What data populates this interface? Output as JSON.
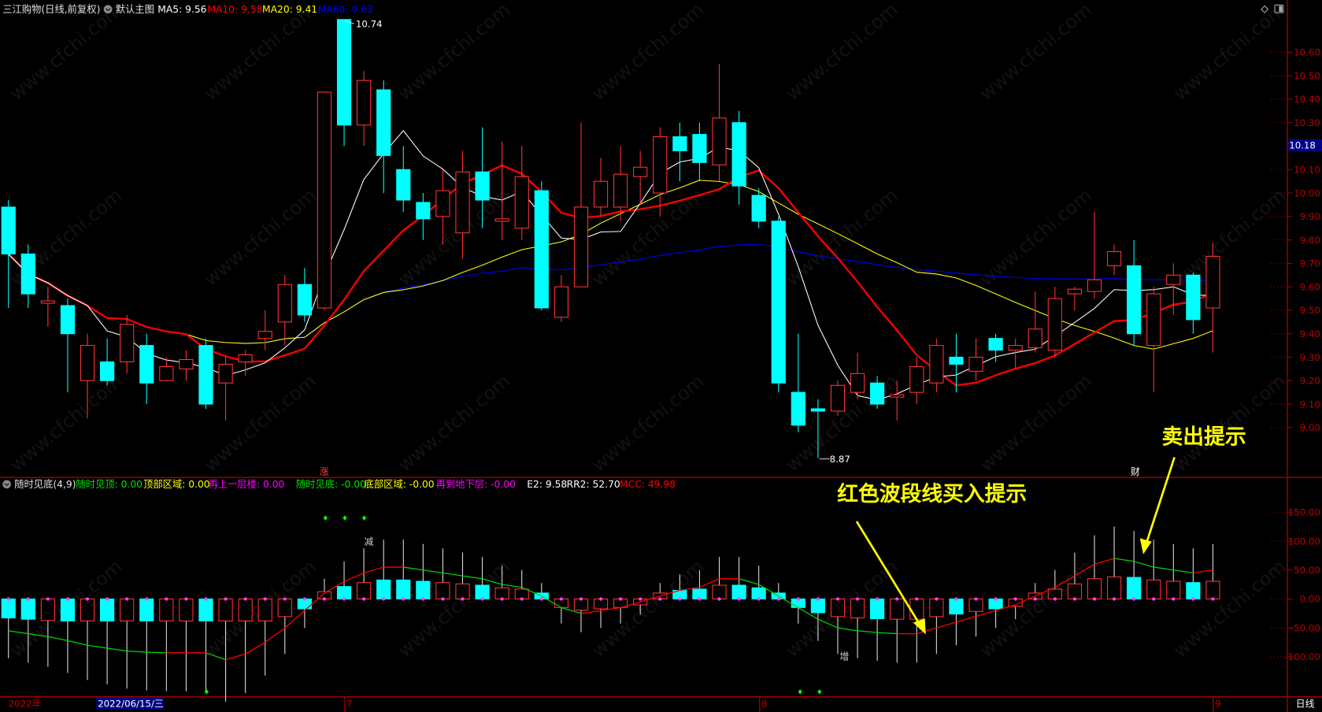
{
  "header": {
    "stock_title": "三江购物(日线,前复权)",
    "template_label": "默认主图",
    "ma5": "MA5: 9.56",
    "ma10": "MA10: 9.58",
    "ma20": "MA20: 9.41",
    "ma60": "MA60: 9.63"
  },
  "indicator_header": {
    "name": "随时见底(4,9)",
    "items": [
      {
        "text": "随时见顶: 0.00",
        "color": "#00e000"
      },
      {
        "text": "顶部区域: 0.00",
        "color": "#ffff00"
      },
      {
        "text": "再上一层楼: 0.00",
        "color": "#ff00ff"
      },
      {
        "text": "随时见底: -0.00",
        "color": "#00e000"
      },
      {
        "text": "底部区域: -0.00",
        "color": "#ffff00"
      },
      {
        "text": "再到地下层: -0.00",
        "color": "#ff00ff"
      },
      {
        "text": "E2: 9.58",
        "color": "#ffffff"
      },
      {
        "text": "RR2: 52.70",
        "color": "#ffffff"
      },
      {
        "text": "MCC: 49.98",
        "color": "#ff0000"
      }
    ]
  },
  "price_axis": {
    "ticks": [
      "10.60",
      "10.50",
      "10.40",
      "10.30",
      "10.10",
      "10.00",
      "9.90",
      "9.80",
      "9.70",
      "9.60",
      "9.50",
      "9.40",
      "9.30",
      "9.20",
      "9.10",
      "9.00"
    ],
    "current_price": "10.18"
  },
  "indicator_axis": {
    "ticks": [
      "150.00",
      "100.00",
      "50.00",
      "0.00",
      "-50.00",
      "-100.00"
    ]
  },
  "time_axis": {
    "year_label": "2022年",
    "cursor_date": "2022/06/15/三",
    "month_labels": [
      "7",
      "8",
      "9"
    ],
    "period_label": "日线"
  },
  "markers": {
    "high_label": "10.74",
    "low_label": "8.87",
    "event_zhang": "涨",
    "event_cai": "财",
    "reduce": "减",
    "increase": "增"
  },
  "annotations": {
    "buy_hint": "红色波段线买入提示",
    "sell_hint": "卖出提示"
  },
  "watermark": "www.cfchi.com",
  "colors": {
    "up": "#ff3232",
    "down": "#00ffff",
    "ma5": "#ffffff",
    "ma10": "#ff0000",
    "ma20": "#ffff00",
    "ma60": "#0000ff",
    "axis": "#c00000",
    "annotation": "#ffff00"
  },
  "candles": [
    [
      9.94,
      9.97,
      9.51,
      9.74
    ],
    [
      9.74,
      9.78,
      9.51,
      9.57
    ],
    [
      9.53,
      9.6,
      9.43,
      9.54
    ],
    [
      9.52,
      9.55,
      9.15,
      9.4
    ],
    [
      9.2,
      9.4,
      9.04,
      9.35
    ],
    [
      9.28,
      9.38,
      9.18,
      9.2
    ],
    [
      9.28,
      9.48,
      9.23,
      9.44
    ],
    [
      9.35,
      9.4,
      9.1,
      9.19
    ],
    [
      9.2,
      9.3,
      9.2,
      9.26
    ],
    [
      9.25,
      9.33,
      9.2,
      9.29
    ],
    [
      9.35,
      9.38,
      9.08,
      9.1
    ],
    [
      9.19,
      9.3,
      9.03,
      9.27
    ],
    [
      9.28,
      9.33,
      9.22,
      9.31
    ],
    [
      9.38,
      9.5,
      9.33,
      9.41
    ],
    [
      9.45,
      9.65,
      9.35,
      9.61
    ],
    [
      9.61,
      9.68,
      9.45,
      9.48
    ],
    [
      9.51,
      10.43,
      9.5,
      10.43
    ],
    [
      10.74,
      10.74,
      10.2,
      10.29
    ],
    [
      10.29,
      10.52,
      10.2,
      10.48
    ],
    [
      10.44,
      10.48,
      10.0,
      10.16
    ],
    [
      10.1,
      10.2,
      9.92,
      9.97
    ],
    [
      9.96,
      10.0,
      9.8,
      9.89
    ],
    [
      9.9,
      10.1,
      9.78,
      10.01
    ],
    [
      9.83,
      10.18,
      9.72,
      10.09
    ],
    [
      10.09,
      10.28,
      9.85,
      9.97
    ],
    [
      9.88,
      10.22,
      9.8,
      9.89
    ],
    [
      9.85,
      10.2,
      9.8,
      10.07
    ],
    [
      10.01,
      10.05,
      9.5,
      9.51
    ],
    [
      9.47,
      9.65,
      9.45,
      9.6
    ],
    [
      9.6,
      10.3,
      9.6,
      9.94
    ],
    [
      9.94,
      10.15,
      9.9,
      10.05
    ],
    [
      9.94,
      10.2,
      9.88,
      10.08
    ],
    [
      10.07,
      10.18,
      9.95,
      10.11
    ],
    [
      10.0,
      10.28,
      9.9,
      10.24
    ],
    [
      10.24,
      10.3,
      10.05,
      10.18
    ],
    [
      10.25,
      10.3,
      10.05,
      10.13
    ],
    [
      10.12,
      10.55,
      10.05,
      10.32
    ],
    [
      10.3,
      10.35,
      9.95,
      10.03
    ],
    [
      9.99,
      10.02,
      9.85,
      9.88
    ],
    [
      9.88,
      9.9,
      9.15,
      9.19
    ],
    [
      9.15,
      9.4,
      8.98,
      9.01
    ],
    [
      9.08,
      9.12,
      8.87,
      9.07
    ],
    [
      9.07,
      9.2,
      9.05,
      9.18
    ],
    [
      9.15,
      9.32,
      9.12,
      9.23
    ],
    [
      9.19,
      9.22,
      9.08,
      9.1
    ],
    [
      9.13,
      9.2,
      9.03,
      9.14
    ],
    [
      9.15,
      9.3,
      9.1,
      9.26
    ],
    [
      9.19,
      9.38,
      9.15,
      9.35
    ],
    [
      9.3,
      9.4,
      9.15,
      9.27
    ],
    [
      9.24,
      9.38,
      9.2,
      9.3
    ],
    [
      9.38,
      9.4,
      9.28,
      9.33
    ],
    [
      9.33,
      9.38,
      9.25,
      9.35
    ],
    [
      9.34,
      9.58,
      9.32,
      9.42
    ],
    [
      9.33,
      9.6,
      9.3,
      9.55
    ],
    [
      9.57,
      9.6,
      9.5,
      9.59
    ],
    [
      9.58,
      9.92,
      9.55,
      9.63
    ],
    [
      9.69,
      9.78,
      9.65,
      9.75
    ],
    [
      9.69,
      9.8,
      9.35,
      9.4
    ],
    [
      9.35,
      9.6,
      9.15,
      9.57
    ],
    [
      9.61,
      9.7,
      9.48,
      9.65
    ],
    [
      9.65,
      9.66,
      9.4,
      9.46
    ],
    [
      9.51,
      9.79,
      9.32,
      9.73
    ]
  ],
  "wave_line": [
    -55,
    -60,
    -65,
    -72,
    -80,
    -85,
    -90,
    -92,
    -93,
    -93,
    -93,
    -105,
    -95,
    -75,
    -50,
    -20,
    10,
    30,
    45,
    55,
    55,
    50,
    45,
    40,
    35,
    25,
    20,
    5,
    -15,
    -25,
    -20,
    -15,
    -5,
    5,
    15,
    20,
    35,
    35,
    25,
    5,
    -15,
    -35,
    -50,
    -55,
    -58,
    -60,
    -60,
    -50,
    -40,
    -30,
    -20,
    -10,
    5,
    20,
    40,
    60,
    70,
    65,
    55,
    50,
    45,
    50
  ]
}
